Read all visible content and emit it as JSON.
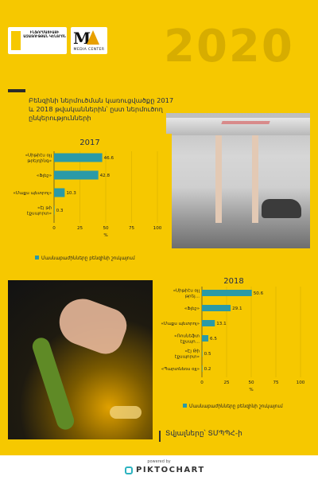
{
  "header": {
    "logo_text": "ԻՆՖՈՐՄԱՑԻԱՅԻ ԱԶԱՏՈՒԹՅԱՆ ԿԵՆՏՐՈՆ",
    "media_center_label": "MEDIA CENTER",
    "year": "2020"
  },
  "title": "Բենզինի ներմուծման կառուցվածքը 2017 և 2018 թվականներին՝ ըստ ներմուծող ընկերությունների",
  "source": "Տվյալները՝ ՏՄՊՊՀ-ի",
  "footer": {
    "powered": "powered by",
    "brand": "PIKTOCHART"
  },
  "colors": {
    "background": "#f6c800",
    "bar": "#2a9aa7",
    "text": "#1e2a4a"
  },
  "chart_data": [
    {
      "type": "bar",
      "orientation": "horizontal",
      "title": "2017",
      "categories": [
        "«Սիթիէս օյլ թրեյդինգ»",
        "«Ֆլեշ»",
        "«Մաքս պետրոլ»",
        "«Էյ թի էքսպորտ»"
      ],
      "values": [
        46.6,
        42.8,
        10.3,
        0.3
      ],
      "xlim": [
        0,
        100
      ],
      "xticks": [
        "0",
        "25",
        "50",
        "75",
        "100"
      ],
      "xlabel": "%",
      "legend": "Մասնաբաժինները բենզինի շուկայում"
    },
    {
      "type": "bar",
      "orientation": "horizontal",
      "title": "2018",
      "categories": [
        "«Սիթիէս օյլ թրեյ...",
        "«Ֆլեշ»",
        "«Մաքս պետրոլ»",
        "«Ռոսնեֆտ էքսպո...",
        "«Էյ Թի էքսպորտ»",
        "«Պարտնեռս օյլ»"
      ],
      "values": [
        50.6,
        29.1,
        13.1,
        6.5,
        0.5,
        0.2
      ],
      "xlim": [
        0,
        100
      ],
      "xticks": [
        "0",
        "25",
        "50",
        "75",
        "100"
      ],
      "xlabel": "%",
      "legend": "Մասնաբաժինները բենզինի շուկայում"
    }
  ]
}
